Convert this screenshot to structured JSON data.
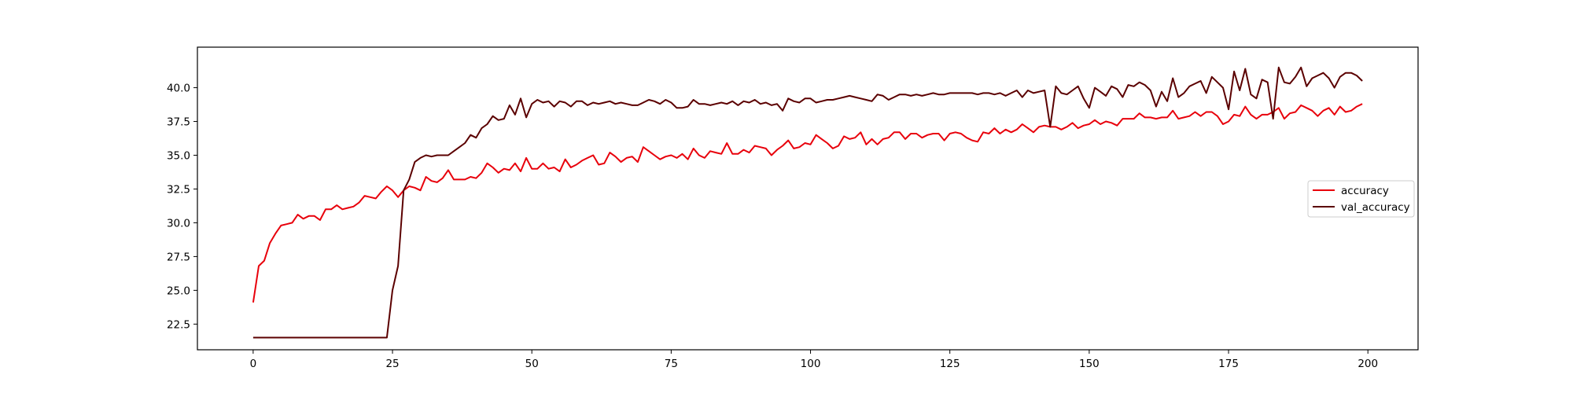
{
  "chart_data": {
    "type": "line",
    "title": "",
    "xlabel": "",
    "ylabel": "",
    "xlim": [
      -10,
      209
    ],
    "ylim": [
      20.6,
      43.0
    ],
    "grid": false,
    "legend_placement": "center-right",
    "x_ticks": [
      0,
      25,
      50,
      75,
      100,
      125,
      150,
      175,
      200
    ],
    "x_tick_labels": [
      "0",
      "25",
      "50",
      "75",
      "100",
      "125",
      "150",
      "175",
      "200"
    ],
    "y_ticks": [
      22.5,
      25.0,
      27.5,
      30.0,
      32.5,
      35.0,
      37.5,
      40.0
    ],
    "y_tick_labels": [
      "22.5",
      "25.0",
      "27.5",
      "30.0",
      "32.5",
      "35.0",
      "37.5",
      "40.0"
    ],
    "series": [
      {
        "name": "accuracy",
        "color": "#e8000b",
        "x": [
          0,
          1,
          2,
          3,
          4,
          5,
          6,
          7,
          8,
          9,
          10,
          11,
          12,
          13,
          14,
          15,
          16,
          17,
          18,
          19,
          20,
          21,
          22,
          23,
          24,
          25,
          26,
          27,
          28,
          29,
          30,
          31,
          32,
          33,
          34,
          35,
          36,
          37,
          38,
          39,
          40,
          41,
          42,
          43,
          44,
          45,
          46,
          47,
          48,
          49,
          50,
          51,
          52,
          53,
          54,
          55,
          56,
          57,
          58,
          59,
          60,
          61,
          62,
          63,
          64,
          65,
          66,
          67,
          68,
          69,
          70,
          71,
          72,
          73,
          74,
          75,
          76,
          77,
          78,
          79,
          80,
          81,
          82,
          83,
          84,
          85,
          86,
          87,
          88,
          89,
          90,
          91,
          92,
          93,
          94,
          95,
          96,
          97,
          98,
          99,
          100,
          101,
          102,
          103,
          104,
          105,
          106,
          107,
          108,
          109,
          110,
          111,
          112,
          113,
          114,
          115,
          116,
          117,
          118,
          119,
          120,
          121,
          122,
          123,
          124,
          125,
          126,
          127,
          128,
          129,
          130,
          131,
          132,
          133,
          134,
          135,
          136,
          137,
          138,
          139,
          140,
          141,
          142,
          143,
          144,
          145,
          146,
          147,
          148,
          149,
          150,
          151,
          152,
          153,
          154,
          155,
          156,
          157,
          158,
          159,
          160,
          161,
          162,
          163,
          164,
          165,
          166,
          167,
          168,
          169,
          170,
          171,
          172,
          173,
          174,
          175,
          176,
          177,
          178,
          179,
          180,
          181,
          182,
          183,
          184,
          185,
          186,
          187,
          188,
          189,
          190,
          191,
          192,
          193,
          194,
          195,
          196,
          197,
          198,
          199
        ],
        "values": [
          24.1,
          26.8,
          27.2,
          28.5,
          29.2,
          29.8,
          29.9,
          30.0,
          30.6,
          30.3,
          30.5,
          30.5,
          30.2,
          31.0,
          31.0,
          31.3,
          31.0,
          31.1,
          31.2,
          31.5,
          32.0,
          31.9,
          31.8,
          32.3,
          32.7,
          32.4,
          31.9,
          32.4,
          32.7,
          32.6,
          32.4,
          33.4,
          33.1,
          33.0,
          33.3,
          33.9,
          33.2,
          33.2,
          33.2,
          33.4,
          33.3,
          33.7,
          34.4,
          34.1,
          33.7,
          34.0,
          33.9,
          34.4,
          33.8,
          34.8,
          34.0,
          34.0,
          34.4,
          34.0,
          34.1,
          33.8,
          34.7,
          34.1,
          34.3,
          34.6,
          34.8,
          35.0,
          34.3,
          34.4,
          35.2,
          34.9,
          34.5,
          34.8,
          34.9,
          34.5,
          35.6,
          35.3,
          35.0,
          34.7,
          34.9,
          35.0,
          34.8,
          35.1,
          34.7,
          35.5,
          35.0,
          34.8,
          35.3,
          35.2,
          35.1,
          35.9,
          35.1,
          35.1,
          35.4,
          35.2,
          35.7,
          35.6,
          35.5,
          35.0,
          35.4,
          35.7,
          36.1,
          35.5,
          35.6,
          35.9,
          35.8,
          36.5,
          36.2,
          35.9,
          35.5,
          35.7,
          36.4,
          36.2,
          36.3,
          36.7,
          35.8,
          36.2,
          35.8,
          36.2,
          36.3,
          36.7,
          36.7,
          36.2,
          36.6,
          36.6,
          36.3,
          36.5,
          36.6,
          36.6,
          36.1,
          36.6,
          36.7,
          36.6,
          36.3,
          36.1,
          36.0,
          36.7,
          36.6,
          37.0,
          36.6,
          36.9,
          36.7,
          36.9,
          37.3,
          37.0,
          36.7,
          37.1,
          37.2,
          37.1,
          37.1,
          36.9,
          37.1,
          37.4,
          37.0,
          37.2,
          37.3,
          37.6,
          37.3,
          37.5,
          37.4,
          37.2,
          37.7,
          37.7,
          37.7,
          38.1,
          37.8,
          37.8,
          37.7,
          37.8,
          37.8,
          38.3,
          37.7,
          37.8,
          37.9,
          38.2,
          37.9,
          38.2,
          38.2,
          37.9,
          37.3,
          37.5,
          38.0,
          37.9,
          38.6,
          38.0,
          37.7,
          38.0,
          38.0,
          38.2,
          38.5,
          37.7,
          38.1,
          38.2,
          38.7,
          38.5,
          38.3,
          37.9,
          38.3,
          38.5,
          38.0,
          38.6,
          38.2,
          38.3,
          38.6,
          38.8
        ]
      },
      {
        "name": "val_accuracy",
        "color": "#5b0000",
        "x": [
          0,
          1,
          2,
          3,
          4,
          5,
          6,
          7,
          8,
          9,
          10,
          11,
          12,
          13,
          14,
          15,
          16,
          17,
          18,
          19,
          20,
          21,
          22,
          23,
          24,
          25,
          26,
          27,
          28,
          29,
          30,
          31,
          32,
          33,
          34,
          35,
          36,
          37,
          38,
          39,
          40,
          41,
          42,
          43,
          44,
          45,
          46,
          47,
          48,
          49,
          50,
          51,
          52,
          53,
          54,
          55,
          56,
          57,
          58,
          59,
          60,
          61,
          62,
          63,
          64,
          65,
          66,
          67,
          68,
          69,
          70,
          71,
          72,
          73,
          74,
          75,
          76,
          77,
          78,
          79,
          80,
          81,
          82,
          83,
          84,
          85,
          86,
          87,
          88,
          89,
          90,
          91,
          92,
          93,
          94,
          95,
          96,
          97,
          98,
          99,
          100,
          101,
          102,
          103,
          104,
          105,
          106,
          107,
          108,
          109,
          110,
          111,
          112,
          113,
          114,
          115,
          116,
          117,
          118,
          119,
          120,
          121,
          122,
          123,
          124,
          125,
          126,
          127,
          128,
          129,
          130,
          131,
          132,
          133,
          134,
          135,
          136,
          137,
          138,
          139,
          140,
          141,
          142,
          143,
          144,
          145,
          146,
          147,
          148,
          149,
          150,
          151,
          152,
          153,
          154,
          155,
          156,
          157,
          158,
          159,
          160,
          161,
          162,
          163,
          164,
          165,
          166,
          167,
          168,
          169,
          170,
          171,
          172,
          173,
          174,
          175,
          176,
          177,
          178,
          179,
          180,
          181,
          182,
          183,
          184,
          185,
          186,
          187,
          188,
          189,
          190,
          191,
          192,
          193,
          194,
          195,
          196,
          197,
          198,
          199
        ],
        "values": [
          21.5,
          21.5,
          21.5,
          21.5,
          21.5,
          21.5,
          21.5,
          21.5,
          21.5,
          21.5,
          21.5,
          21.5,
          21.5,
          21.5,
          21.5,
          21.5,
          21.5,
          21.5,
          21.5,
          21.5,
          21.5,
          21.5,
          21.5,
          21.5,
          21.5,
          25.0,
          26.8,
          32.4,
          33.2,
          34.5,
          34.8,
          35.0,
          34.9,
          35.0,
          35.0,
          35.0,
          35.3,
          35.6,
          35.9,
          36.5,
          36.3,
          37.0,
          37.3,
          37.9,
          37.6,
          37.7,
          38.7,
          38.0,
          39.2,
          37.8,
          38.8,
          39.1,
          38.9,
          39.0,
          38.6,
          39.0,
          38.9,
          38.6,
          39.0,
          39.0,
          38.7,
          38.9,
          38.8,
          38.9,
          39.0,
          38.8,
          38.9,
          38.8,
          38.7,
          38.7,
          38.9,
          39.1,
          39.0,
          38.8,
          39.1,
          38.9,
          38.5,
          38.5,
          38.6,
          39.1,
          38.8,
          38.8,
          38.7,
          38.8,
          38.9,
          38.8,
          39.0,
          38.7,
          39.0,
          38.9,
          39.1,
          38.8,
          38.9,
          38.7,
          38.8,
          38.3,
          39.2,
          39.0,
          38.9,
          39.2,
          39.2,
          38.9,
          39.0,
          39.1,
          39.1,
          39.2,
          39.3,
          39.4,
          39.3,
          39.2,
          39.1,
          39.0,
          39.5,
          39.4,
          39.1,
          39.3,
          39.5,
          39.5,
          39.4,
          39.5,
          39.4,
          39.5,
          39.6,
          39.5,
          39.5,
          39.6,
          39.6,
          39.6,
          39.6,
          39.6,
          39.5,
          39.6,
          39.6,
          39.5,
          39.6,
          39.4,
          39.6,
          39.8,
          39.3,
          39.8,
          39.6,
          39.7,
          39.8,
          37.1,
          40.1,
          39.6,
          39.5,
          39.8,
          40.1,
          39.2,
          38.5,
          40.0,
          39.7,
          39.4,
          40.1,
          39.9,
          39.3,
          40.2,
          40.1,
          40.4,
          40.2,
          39.8,
          38.6,
          39.7,
          39.0,
          40.7,
          39.3,
          39.6,
          40.1,
          40.3,
          40.5,
          39.6,
          40.8,
          40.4,
          40.0,
          38.4,
          41.2,
          39.8,
          41.4,
          39.5,
          39.2,
          40.6,
          40.4,
          37.7,
          41.5,
          40.4,
          40.3,
          40.8,
          41.5,
          40.1,
          40.7,
          40.9,
          41.1,
          40.7,
          40.0,
          40.8,
          41.1,
          41.1,
          40.9,
          40.5
        ]
      }
    ]
  }
}
